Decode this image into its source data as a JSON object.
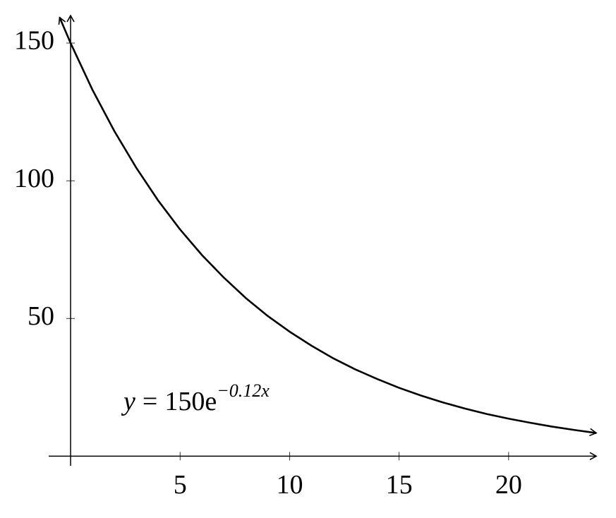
{
  "chart_data": {
    "type": "line",
    "annotation": {
      "lhs": "y",
      "relation": "=",
      "rhs": "150e",
      "exponent": "−0.12x"
    },
    "x": [
      -0.5,
      0,
      1,
      2,
      3,
      4,
      5,
      6,
      7,
      8,
      9,
      10,
      11,
      12,
      13,
      14,
      15,
      16,
      17,
      18,
      19,
      20,
      21,
      22,
      23,
      24
    ],
    "series": [
      {
        "color": "#000000",
        "values": [
          159.3,
          150,
          133.0,
          118.0,
          104.7,
          92.8,
          82.3,
          73.0,
          64.8,
          57.4,
          50.9,
          45.2,
          40.1,
          35.5,
          31.5,
          28.0,
          24.8,
          22.0,
          19.5,
          17.3,
          15.3,
          13.6,
          12.1,
          10.7,
          9.5,
          8.4
        ]
      }
    ],
    "xlim": [
      -1,
      24
    ],
    "ylim": [
      -3.5,
      160
    ],
    "xticks": [
      5,
      10,
      15,
      20
    ],
    "yticks": [
      50,
      100,
      150
    ],
    "grid": false
  }
}
